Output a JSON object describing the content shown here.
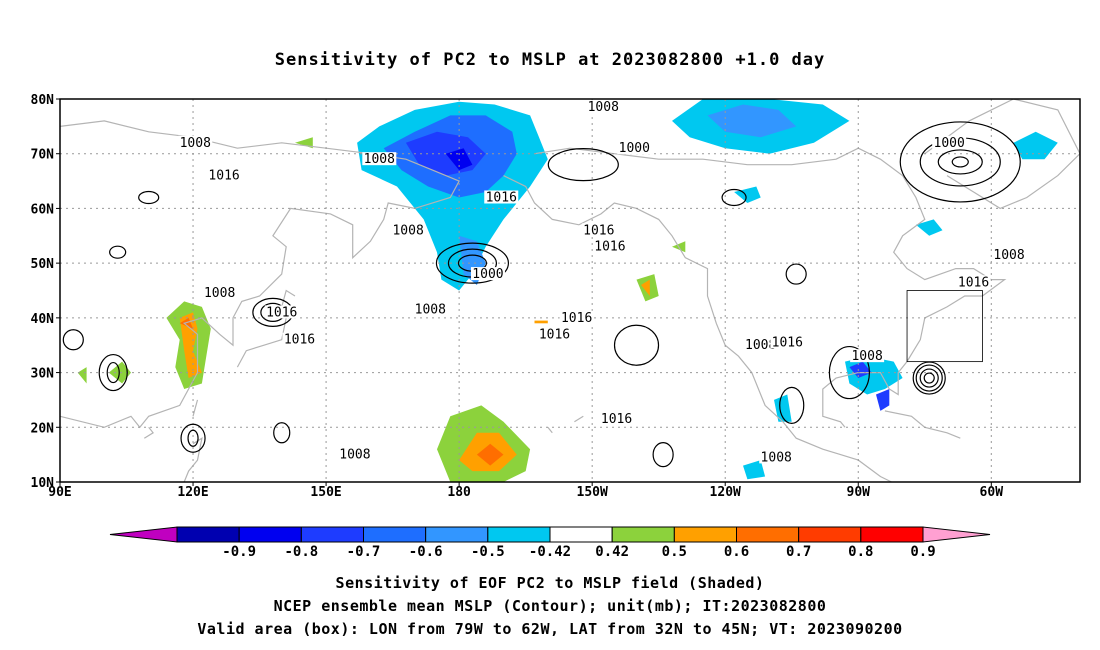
{
  "title": "Sensitivity of PC2 to MSLP at 2023082800 +1.0 day",
  "captions": [
    "Sensitivity of EOF PC2 to MSLP field (Shaded)",
    "NCEP ensemble mean MSLP (Contour); unit(mb); IT:2023082800",
    "Valid area (box): LON from 79W to 62W, LAT from 32N to 45N; VT: 2023090200"
  ],
  "map": {
    "lat_labels": [
      "80N",
      "70N",
      "60N",
      "50N",
      "40N",
      "30N",
      "20N",
      "10N"
    ],
    "lon_labels": [
      "90E",
      "120E",
      "150E",
      "180",
      "150W",
      "120W",
      "90W",
      "60W"
    ],
    "contour_labels": [
      {
        "text": "1008",
        "lon": 120.5,
        "lat": 72.0
      },
      {
        "text": "1008",
        "lon": 162.0,
        "lat": 69.0
      },
      {
        "text": "1016",
        "lon": 127.0,
        "lat": 66.0
      },
      {
        "text": "1008",
        "lon": 212.5,
        "lat": 78.5
      },
      {
        "text": "1000",
        "lon": 219.5,
        "lat": 71.0
      },
      {
        "text": "1016",
        "lon": 189.5,
        "lat": 62.0
      },
      {
        "text": "1008",
        "lon": 168.5,
        "lat": 56.0
      },
      {
        "text": "1000",
        "lon": 186.5,
        "lat": 48.0
      },
      {
        "text": "1008",
        "lon": 173.5,
        "lat": 41.5
      },
      {
        "text": "1016",
        "lon": 140.0,
        "lat": 41.0
      },
      {
        "text": "1008",
        "lon": 126.0,
        "lat": 44.5
      },
      {
        "text": "1016",
        "lon": 144.0,
        "lat": 36.0
      },
      {
        "text": "1016",
        "lon": 206.5,
        "lat": 40.0
      },
      {
        "text": "1016",
        "lon": 201.5,
        "lat": 37.0
      },
      {
        "text": "1016",
        "lon": 211.5,
        "lat": 56.0
      },
      {
        "text": "1016",
        "lon": 214.0,
        "lat": 53.0
      },
      {
        "text": "1000",
        "lon": 290.5,
        "lat": 72.0
      },
      {
        "text": "1008",
        "lon": 304.0,
        "lat": 51.5
      },
      {
        "text": "1016",
        "lon": 296.0,
        "lat": 46.5
      },
      {
        "text": "1008",
        "lon": 248.0,
        "lat": 35.0
      },
      {
        "text": "1016",
        "lon": 254.0,
        "lat": 35.5
      },
      {
        "text": "1008",
        "lon": 272.0,
        "lat": 33.0
      },
      {
        "text": "1008",
        "lon": 251.5,
        "lat": 14.5
      },
      {
        "text": "1016",
        "lon": 215.5,
        "lat": 21.5
      },
      {
        "text": "1008",
        "lon": 156.5,
        "lat": 15.0
      }
    ],
    "valid_box": {
      "lon_min": 281,
      "lon_max": 298,
      "lat_min": 32,
      "lat_max": 45
    }
  },
  "colorbar": {
    "labels": [
      "-0.9",
      "-0.8",
      "-0.7",
      "-0.6",
      "-0.5",
      "-0.42",
      "0.42",
      "0.5",
      "0.6",
      "0.7",
      "0.8",
      "0.9"
    ],
    "colors": [
      "#c000c0",
      "#0000b0",
      "#0000f0",
      "#1e3cff",
      "#1e6eff",
      "#3296ff",
      "#00c8f0",
      "#ffffff",
      "#8cd23c",
      "#ffa000",
      "#ff6e00",
      "#ff3c00",
      "#ff0000",
      "#ffa0d2"
    ]
  }
}
